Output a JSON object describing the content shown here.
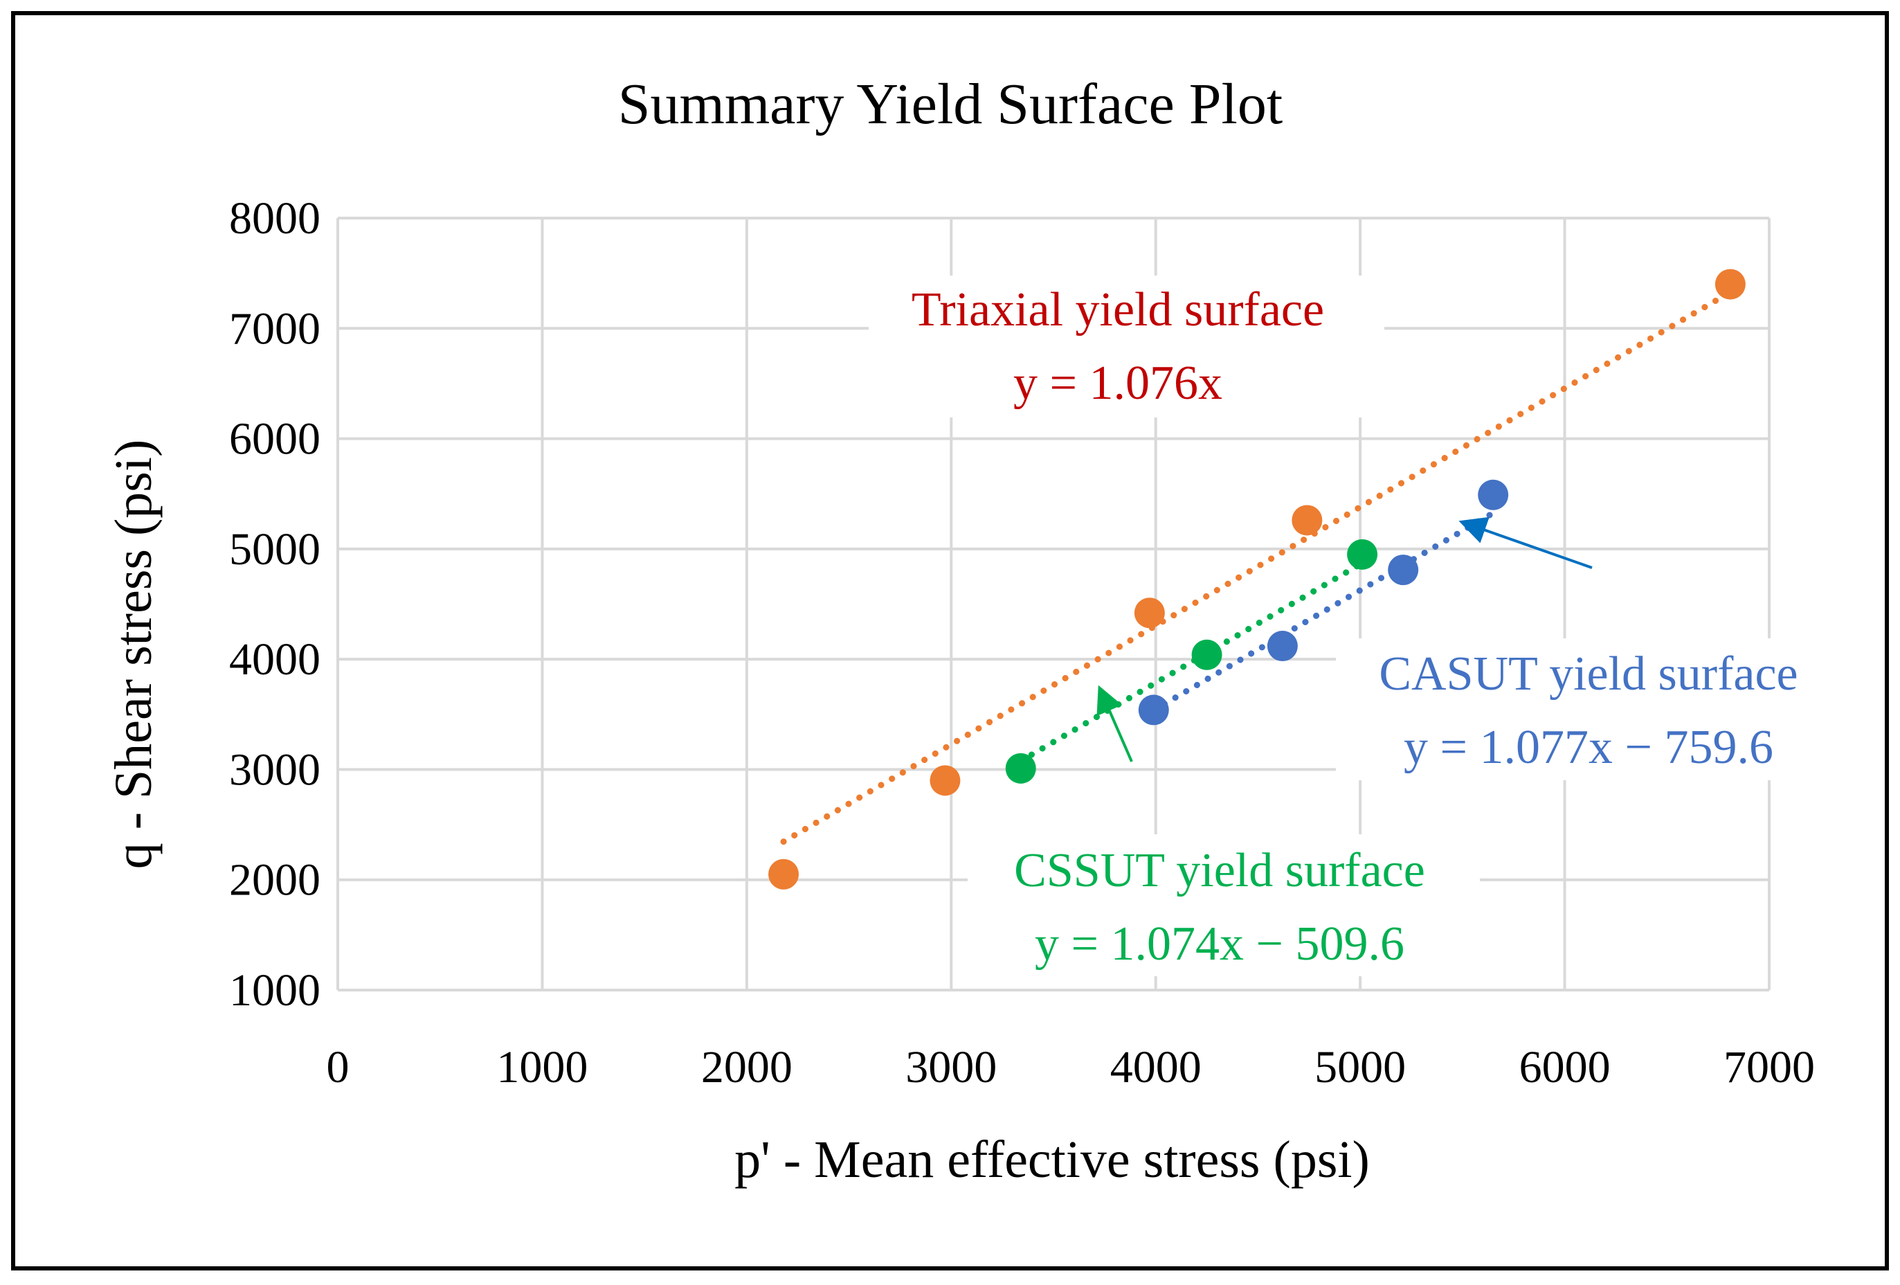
{
  "chart_data": {
    "type": "scatter",
    "title": "Summary Yield Surface Plot",
    "xlabel": "p' - Mean effective stress (psi)",
    "ylabel": "q - Shear stress (psi)",
    "xlim": [
      0,
      7000
    ],
    "ylim": [
      1000,
      8000
    ],
    "xticks": [
      "0",
      "1000",
      "2000",
      "3000",
      "4000",
      "5000",
      "6000",
      "7000"
    ],
    "yticks": [
      "1000",
      "2000",
      "3000",
      "4000",
      "5000",
      "6000",
      "7000",
      "8000"
    ],
    "grid": true,
    "series": [
      {
        "name": "Triaxial",
        "color": "#ED7D31",
        "points": [
          {
            "x": 2180,
            "y": 2050
          },
          {
            "x": 2970,
            "y": 2900
          },
          {
            "x": 3970,
            "y": 4420
          },
          {
            "x": 4740,
            "y": 5260
          },
          {
            "x": 6810,
            "y": 7400
          }
        ],
        "trendline": {
          "slope": 1.076,
          "intercept": 0,
          "x_range": [
            2180,
            6810
          ]
        },
        "label": "Triaxial yield surface",
        "equation": "y = 1.076x",
        "label_color": "#C00000",
        "arrow_color": "#ED7D31"
      },
      {
        "name": "CASUT",
        "color": "#4472C4",
        "points": [
          {
            "x": 3990,
            "y": 3540
          },
          {
            "x": 4620,
            "y": 4120
          },
          {
            "x": 5210,
            "y": 4810
          },
          {
            "x": 5650,
            "y": 5490
          }
        ],
        "trendline": {
          "slope": 1.077,
          "intercept": -759.6,
          "x_range": [
            3990,
            5650
          ]
        },
        "label": "CASUT yield surface",
        "equation": "y = 1.077x − 759.6",
        "label_color": "#4472C4",
        "arrow_color": "#0070C0"
      },
      {
        "name": "CSSUT",
        "color": "#00B050",
        "points": [
          {
            "x": 3340,
            "y": 3010
          },
          {
            "x": 4250,
            "y": 4040
          },
          {
            "x": 5010,
            "y": 4950
          }
        ],
        "trendline": {
          "slope": 1.074,
          "intercept": -509.6,
          "x_range": [
            3340,
            5010
          ]
        },
        "label": "CSSUT yield surface",
        "equation": "y = 1.074x  − 509.6",
        "label_color": "#00B050",
        "arrow_color": "#00B050"
      }
    ]
  }
}
